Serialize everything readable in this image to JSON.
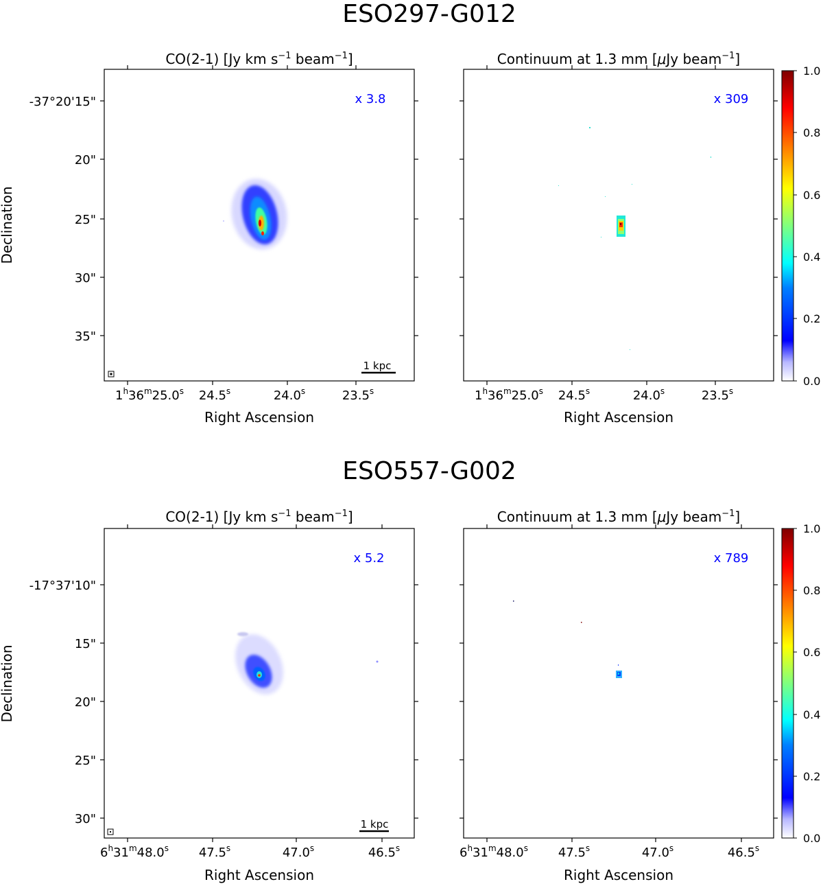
{
  "figure": {
    "rows": [
      {
        "galaxy": "ESO297-G012",
        "ylabel": "Declination",
        "xlabel": "Right Ascension",
        "dec_ticks": [
          "-37°20'15\"",
          "20\"",
          "25\"",
          "30\"",
          "35\""
        ],
        "ra_ticks": [
          {
            "base": "1",
            "sup1": "h",
            "mid": "36",
            "sup2": "m",
            "val": "25.0",
            "sup3": "s"
          },
          {
            "val": "24.5",
            "sup3": "s"
          },
          {
            "val": "24.0",
            "sup3": "s"
          },
          {
            "val": "23.5",
            "sup3": "s"
          }
        ],
        "panels": [
          {
            "title_pre": "CO(2-1) [Jy km s",
            "title_sup1": "−1",
            "title_mid": " beam",
            "title_sup2": "−1",
            "title_post": "]",
            "factor": "x 3.8",
            "scalebar": "1 kpc"
          },
          {
            "title_pre": "Continuum at 1.3 mm [",
            "title_mu": "μ",
            "title_mid": "Jy beam",
            "title_sup2": "−1",
            "title_post": "]",
            "factor": "x 309"
          }
        ]
      },
      {
        "galaxy": "ESO557-G002",
        "ylabel": "Declination",
        "xlabel": "Right Ascension",
        "dec_ticks": [
          "-17°37'10\"",
          "15\"",
          "20\"",
          "25\"",
          "30\""
        ],
        "ra_ticks": [
          {
            "base": "6",
            "sup1": "h",
            "mid": "31",
            "sup2": "m",
            "val": "48.0",
            "sup3": "s"
          },
          {
            "val": "47.5",
            "sup3": "s"
          },
          {
            "val": "47.0",
            "sup3": "s"
          },
          {
            "val": "46.5",
            "sup3": "s"
          }
        ],
        "panels": [
          {
            "title_pre": "CO(2-1) [Jy km s",
            "title_sup1": "−1",
            "title_mid": " beam",
            "title_sup2": "−1",
            "title_post": "]",
            "factor": "x 5.2",
            "scalebar": "1 kpc"
          },
          {
            "title_pre": "Continuum at 1.3 mm [",
            "title_mu": "μ",
            "title_mid": "Jy beam",
            "title_sup2": "−1",
            "title_post": "]",
            "factor": "x 789"
          }
        ]
      }
    ],
    "colorbar_ticks": [
      "1.0",
      "0.8",
      "0.6",
      "0.4",
      "0.2",
      "0.0"
    ],
    "colors": {
      "factor_text": "#0000ff",
      "jet": [
        "#ffffff",
        "#00007f",
        "#0000ff",
        "#007fff",
        "#00ffff",
        "#7fff7f",
        "#ffff00",
        "#ff7f00",
        "#ff0000",
        "#7f0000"
      ]
    }
  },
  "chart_data": [
    {
      "type": "heatmap",
      "title": "ESO297-G012 — CO(2-1) [Jy km s^-1 beam^-1]",
      "xlabel": "Right Ascension",
      "ylabel": "Declination",
      "x_ticks": [
        "1h36m25.0s",
        "24.5s",
        "24.0s",
        "23.5s"
      ],
      "y_ticks": [
        "-37°20'15\"",
        "20\"",
        "25\"",
        "30\"",
        "35\""
      ],
      "colorbar": [
        0.0,
        1.0
      ],
      "normalization_factor": "x 3.8",
      "emission_center": {
        "ra_s": 24.18,
        "dec_arcsec": 25.5
      },
      "peak_value": 1.0
    },
    {
      "type": "heatmap",
      "title": "ESO297-G012 — Continuum at 1.3 mm [μJy beam^-1]",
      "xlabel": "Right Ascension",
      "ylabel": "Declination",
      "x_ticks": [
        "1h36m25.0s",
        "24.5s",
        "24.0s",
        "23.5s"
      ],
      "y_ticks": [
        "-37°20'15\"",
        "20\"",
        "25\"",
        "30\"",
        "35\""
      ],
      "colorbar": [
        0.0,
        1.0
      ],
      "normalization_factor": "x 309",
      "emission_center": {
        "ra_s": 24.18,
        "dec_arcsec": 25.5
      },
      "peak_value": 1.0
    },
    {
      "type": "heatmap",
      "title": "ESO557-G002 — CO(2-1) [Jy km s^-1 beam^-1]",
      "xlabel": "Right Ascension",
      "ylabel": "Declination",
      "x_ticks": [
        "6h31m48.0s",
        "47.5s",
        "47.0s",
        "46.5s"
      ],
      "y_ticks": [
        "-17°37'10\"",
        "15\"",
        "20\"",
        "25\"",
        "30\""
      ],
      "colorbar": [
        0.0,
        1.0
      ],
      "normalization_factor": "x 5.2",
      "emission_center": {
        "ra_s": 47.2,
        "dec_arcsec": 17.7
      },
      "peak_value": 1.0
    },
    {
      "type": "heatmap",
      "title": "ESO557-G002 — Continuum at 1.3 mm [μJy beam^-1]",
      "xlabel": "Right Ascension",
      "ylabel": "Declination",
      "x_ticks": [
        "6h31m48.0s",
        "47.5s",
        "47.0s",
        "46.5s"
      ],
      "y_ticks": [
        "-17°37'10\"",
        "15\"",
        "20\"",
        "25\"",
        "30\""
      ],
      "colorbar": [
        0.0,
        1.0
      ],
      "normalization_factor": "x 789",
      "emission_center": {
        "ra_s": 47.2,
        "dec_arcsec": 17.7
      },
      "peak_value": 1.0
    }
  ]
}
